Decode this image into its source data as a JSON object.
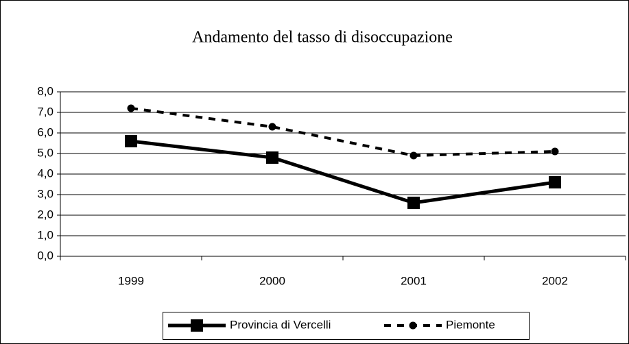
{
  "chart_data": {
    "type": "line",
    "title": "Andamento del tasso di disoccupazione",
    "categories": [
      "1999",
      "2000",
      "2001",
      "2002"
    ],
    "series": [
      {
        "name": "Provincia di Vercelli",
        "color": "#000000",
        "style": "solid",
        "marker": "square",
        "values": [
          5.6,
          4.8,
          2.6,
          3.6
        ]
      },
      {
        "name": "Piemonte",
        "color": "#000000",
        "style": "dashed",
        "marker": "circle",
        "values": [
          7.2,
          6.3,
          4.9,
          5.1
        ]
      }
    ],
    "ylim": [
      0,
      8
    ],
    "yticks": [
      {
        "value": 0,
        "label": "0,0"
      },
      {
        "value": 1,
        "label": "1,0"
      },
      {
        "value": 2,
        "label": "2,0"
      },
      {
        "value": 3,
        "label": "3,0"
      },
      {
        "value": 4,
        "label": "4,0"
      },
      {
        "value": 5,
        "label": "5,0"
      },
      {
        "value": 6,
        "label": "6,0"
      },
      {
        "value": 7,
        "label": "7,0"
      },
      {
        "value": 8,
        "label": "8,0"
      }
    ],
    "grid": true,
    "legend": "bottom"
  }
}
